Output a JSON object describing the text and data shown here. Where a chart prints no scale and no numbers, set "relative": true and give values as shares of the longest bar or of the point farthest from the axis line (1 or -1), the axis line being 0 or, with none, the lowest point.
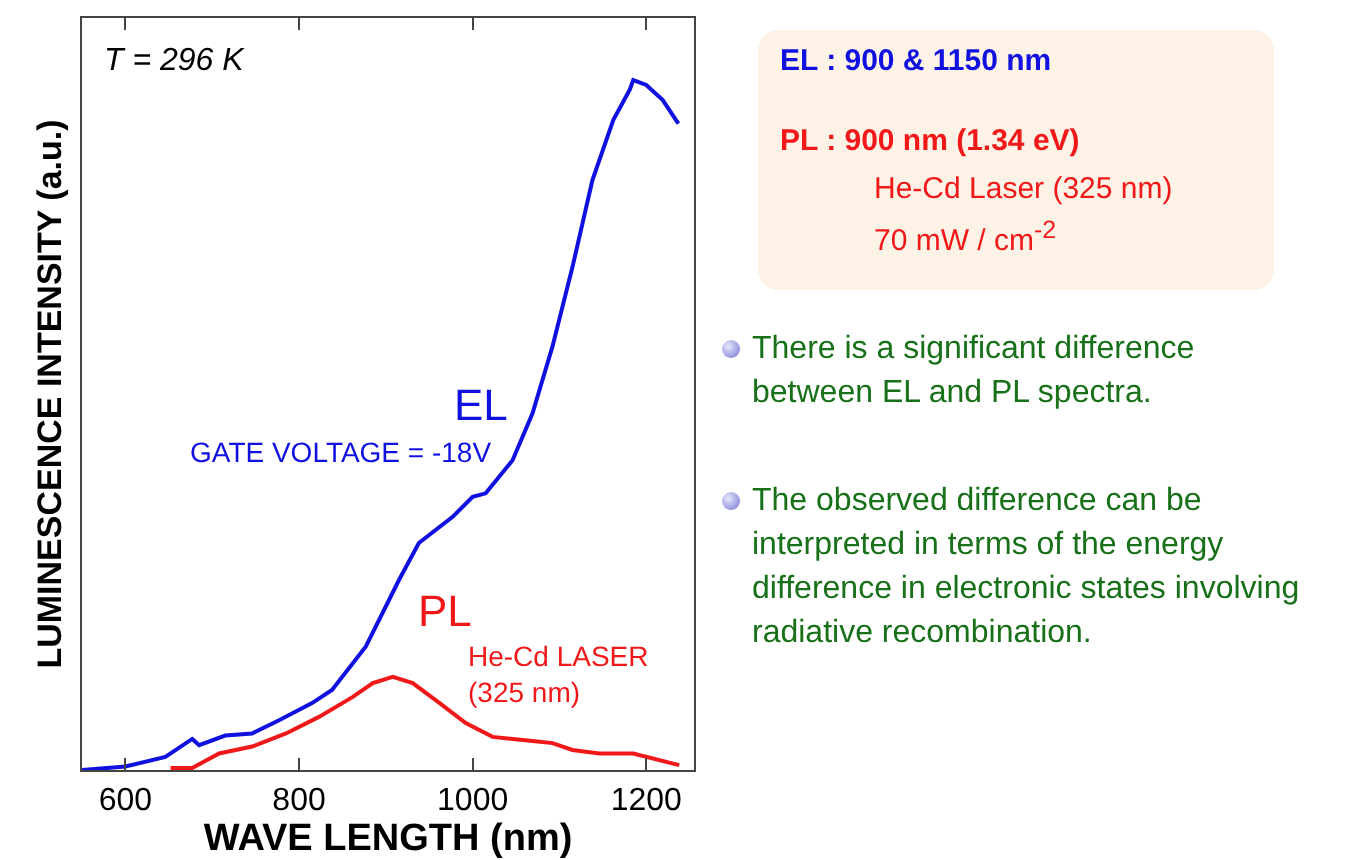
{
  "chart_data": {
    "type": "line",
    "relative": true,
    "xlabel": "WAVE LENGTH (nm)",
    "ylabel": "LUMINESCENCE INTENSITY (a.u.)",
    "xlim": [
      550,
      1255
    ],
    "xticks": [
      600,
      800,
      1000,
      1200
    ],
    "grid": false,
    "legend": false,
    "marker": "none",
    "line_style": "solid",
    "series": [
      {
        "name": "EL",
        "color": "#1010e0",
        "x": [
          550,
          600,
          646,
          677,
          685,
          715,
          746,
          777,
          815,
          838,
          877,
          915,
          938,
          977,
          1000,
          1015,
          1046,
          1069,
          1092,
          1115,
          1138,
          1162,
          1181,
          1185,
          1200,
          1219,
          1237
        ],
        "values": [
          0,
          0.005,
          0.019,
          0.045,
          0.036,
          0.05,
          0.053,
          0.072,
          0.097,
          0.116,
          0.179,
          0.275,
          0.329,
          0.367,
          0.396,
          0.401,
          0.449,
          0.517,
          0.614,
          0.729,
          0.855,
          0.942,
          0.986,
          1,
          0.993,
          0.971,
          0.937
        ]
      },
      {
        "name": "PL",
        "color": "#f01818",
        "x": [
          652,
          677,
          708,
          746,
          785,
          823,
          862,
          885,
          908,
          931,
          962,
          992,
          1023,
          1069,
          1092,
          1115,
          1146,
          1185,
          1238
        ],
        "values": [
          0.003,
          0.003,
          0.024,
          0.034,
          0.053,
          0.077,
          0.106,
          0.126,
          0.135,
          0.126,
          0.097,
          0.068,
          0.048,
          0.042,
          0.039,
          0.029,
          0.024,
          0.024,
          0.007
        ]
      }
    ],
    "annotations": [
      "T = 296 K",
      "GATE VOLTAGE = -18V",
      "He-Cd LASER (325 nm)",
      "EL : 900 & 1150 nm",
      "PL : 900 nm (1.34 eV)",
      "He-Cd Laser (325 nm)",
      "70 mW / cm$^{-2}$",
      "There is a significant difference between EL and PL spectra.",
      "The observed difference can be interpreted in terms of the energy difference in electronic states involving radiative recombination."
    ]
  }
}
